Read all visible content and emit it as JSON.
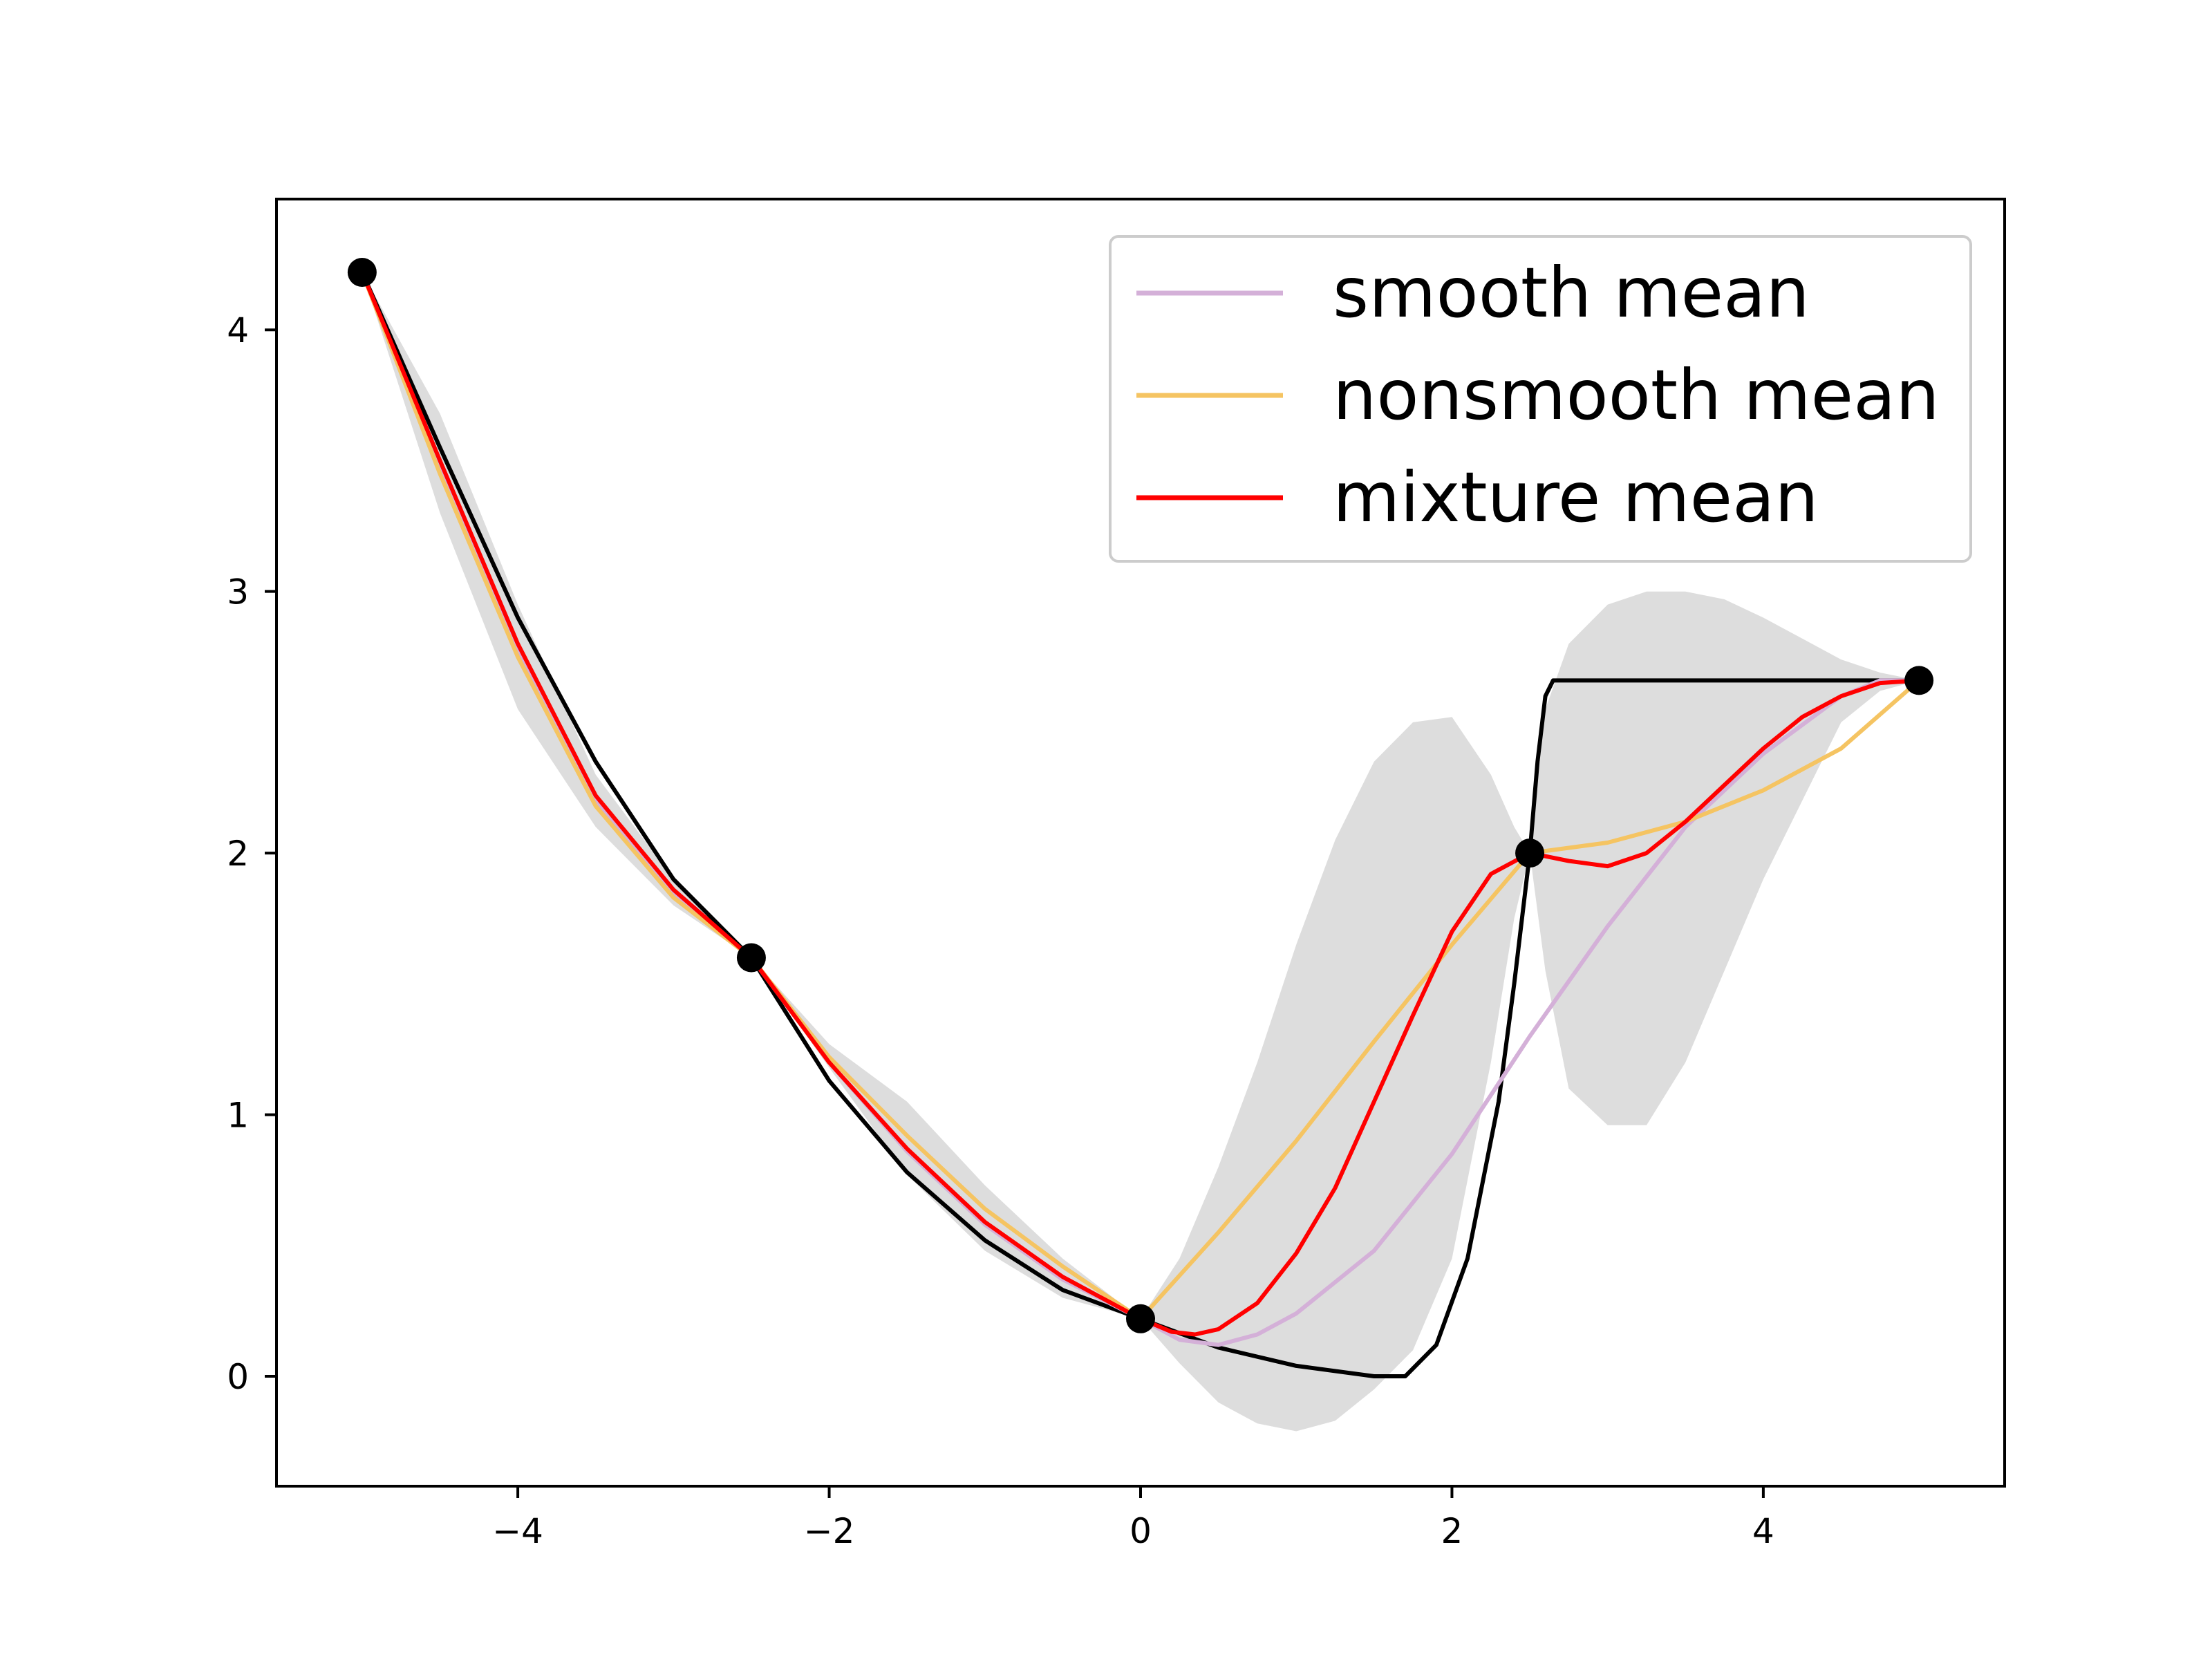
{
  "chart_data": {
    "type": "line",
    "title": "",
    "xlabel": "",
    "ylabel": "",
    "xlim": [
      -5.55,
      5.55
    ],
    "ylim": [
      -0.42,
      4.5
    ],
    "grid": false,
    "legend_position": "upper right",
    "xticks": [
      {
        "value": -4,
        "label": "−4"
      },
      {
        "value": -2,
        "label": "−2"
      },
      {
        "value": 0,
        "label": "0"
      },
      {
        "value": 2,
        "label": "2"
      },
      {
        "value": 4,
        "label": "4"
      }
    ],
    "yticks": [
      {
        "value": 0,
        "label": "0"
      },
      {
        "value": 1,
        "label": "1"
      },
      {
        "value": 2,
        "label": "2"
      },
      {
        "value": 3,
        "label": "3"
      },
      {
        "value": 4,
        "label": "4"
      }
    ],
    "observations": {
      "color": "#000000",
      "x": [
        -5.0,
        -2.5,
        0.0,
        2.5,
        5.0
      ],
      "y": [
        4.22,
        1.6,
        0.22,
        2.0,
        2.66
      ]
    },
    "true_function": {
      "color": "#000000",
      "x": [
        -5.0,
        -4.5,
        -4.0,
        -3.5,
        -3.0,
        -2.5,
        -2.0,
        -1.5,
        -1.0,
        -0.5,
        0.0,
        0.5,
        1.0,
        1.5,
        1.7,
        1.9,
        2.1,
        2.3,
        2.4,
        2.5,
        2.55,
        2.6,
        2.65,
        5.0
      ],
      "y": [
        4.22,
        3.55,
        2.9,
        2.35,
        1.9,
        1.6,
        1.13,
        0.78,
        0.52,
        0.33,
        0.22,
        0.11,
        0.04,
        0.0,
        0.0,
        0.12,
        0.45,
        1.05,
        1.5,
        2.0,
        2.35,
        2.6,
        2.66,
        2.66
      ]
    },
    "confidence_band": {
      "color": "#dddddd",
      "x": [
        -5.0,
        -4.5,
        -4.0,
        -3.5,
        -3.0,
        -2.5,
        -2.0,
        -1.5,
        -1.0,
        -0.5,
        0.0,
        0.25,
        0.5,
        0.75,
        1.0,
        1.25,
        1.5,
        1.75,
        2.0,
        2.25,
        2.4,
        2.5,
        2.6,
        2.75,
        3.0,
        3.25,
        3.5,
        3.75,
        4.0,
        4.25,
        4.5,
        4.75,
        5.0
      ],
      "lower": [
        4.22,
        3.3,
        2.55,
        2.1,
        1.8,
        1.6,
        1.18,
        0.77,
        0.48,
        0.3,
        0.22,
        0.05,
        -0.1,
        -0.18,
        -0.21,
        -0.17,
        -0.05,
        0.1,
        0.45,
        1.2,
        1.75,
        2.0,
        1.55,
        1.1,
        0.96,
        0.96,
        1.2,
        1.55,
        1.9,
        2.2,
        2.5,
        2.62,
        2.66
      ],
      "upper": [
        4.22,
        3.68,
        2.95,
        2.3,
        1.9,
        1.6,
        1.27,
        1.05,
        0.73,
        0.45,
        0.22,
        0.45,
        0.8,
        1.2,
        1.65,
        2.05,
        2.35,
        2.5,
        2.52,
        2.3,
        2.1,
        2.0,
        2.55,
        2.8,
        2.95,
        3.0,
        3.0,
        2.97,
        2.9,
        2.82,
        2.74,
        2.69,
        2.66
      ]
    },
    "series": [
      {
        "name": "smooth mean",
        "color": "#d4b0d8",
        "x": [
          -5.0,
          -4.5,
          -4.0,
          -3.5,
          -3.0,
          -2.5,
          -2.0,
          -1.5,
          -1.0,
          -0.5,
          0.0,
          0.25,
          0.5,
          0.75,
          1.0,
          1.5,
          2.0,
          2.5,
          3.0,
          3.5,
          4.0,
          4.5,
          4.75,
          5.0
        ],
        "values": [
          4.22,
          3.48,
          2.78,
          2.2,
          1.85,
          1.6,
          1.2,
          0.86,
          0.58,
          0.37,
          0.22,
          0.14,
          0.12,
          0.16,
          0.24,
          0.48,
          0.85,
          1.3,
          1.72,
          2.1,
          2.38,
          2.6,
          2.66,
          2.66
        ]
      },
      {
        "name": "nonsmooth mean",
        "color": "#f5c462",
        "x": [
          -5.0,
          -4.5,
          -4.0,
          -3.5,
          -3.0,
          -2.5,
          -2.0,
          -1.5,
          -1.0,
          -0.5,
          0.0,
          0.5,
          1.0,
          1.5,
          2.0,
          2.5,
          3.0,
          3.5,
          4.0,
          4.5,
          5.0
        ],
        "values": [
          4.22,
          3.45,
          2.75,
          2.18,
          1.83,
          1.6,
          1.22,
          0.92,
          0.64,
          0.42,
          0.22,
          0.55,
          0.9,
          1.28,
          1.65,
          2.0,
          2.04,
          2.12,
          2.24,
          2.4,
          2.66
        ]
      },
      {
        "name": "mixture mean",
        "color": "#ff0000",
        "x": [
          -5.0,
          -4.5,
          -4.0,
          -3.5,
          -3.0,
          -2.5,
          -2.0,
          -1.5,
          -1.0,
          -0.5,
          0.0,
          0.2,
          0.35,
          0.5,
          0.75,
          1.0,
          1.25,
          1.5,
          1.75,
          2.0,
          2.25,
          2.5,
          2.75,
          3.0,
          3.25,
          3.5,
          3.75,
          4.0,
          4.25,
          4.5,
          4.75,
          5.0
        ],
        "values": [
          4.22,
          3.5,
          2.8,
          2.22,
          1.86,
          1.6,
          1.2,
          0.87,
          0.59,
          0.38,
          0.22,
          0.17,
          0.16,
          0.18,
          0.28,
          0.47,
          0.72,
          1.05,
          1.38,
          1.7,
          1.92,
          2.0,
          1.97,
          1.95,
          2.0,
          2.12,
          2.26,
          2.4,
          2.52,
          2.6,
          2.65,
          2.66
        ]
      }
    ]
  }
}
